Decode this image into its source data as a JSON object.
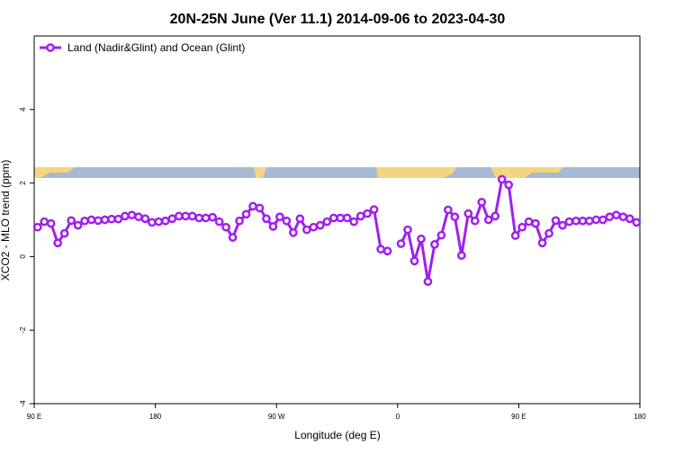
{
  "chart_data": {
    "type": "line",
    "title": "20N-25N June (Ver 11.1)   2014-09-06 to 2023-04-30",
    "x_label": "Longitude (deg E)",
    "y_label": "XCO2 - MLO trend (ppm)",
    "xlim": [
      90,
      540
    ],
    "xticks": [
      {
        "value": 90,
        "label": "90 E"
      },
      {
        "value": 180,
        "label": "180"
      },
      {
        "value": 270,
        "label": "90 W"
      },
      {
        "value": 360,
        "label": "0"
      },
      {
        "value": 450,
        "label": "90 E"
      },
      {
        "value": 540,
        "label": "180"
      }
    ],
    "ylim": [
      -4,
      6
    ],
    "yticks": [
      -4,
      -2,
      0,
      2,
      4
    ],
    "legend": "top-left",
    "x": [
      92.5,
      97.5,
      102.5,
      107.5,
      112.5,
      117.5,
      122.5,
      127.5,
      132.5,
      137.5,
      142.5,
      147.5,
      152.5,
      157.5,
      162.5,
      167.5,
      172.5,
      177.5,
      182.5,
      187.5,
      192.5,
      197.5,
      202.5,
      207.5,
      212.5,
      217.5,
      222.5,
      227.5,
      232.5,
      237.5,
      242.5,
      247.5,
      252.5,
      257.5,
      262.5,
      267.5,
      272.5,
      277.5,
      282.5,
      287.5,
      292.5,
      297.5,
      302.5,
      307.5,
      312.5,
      317.5,
      322.5,
      327.5,
      332.5,
      337.5,
      342.5,
      347.5,
      352.5,
      357.5,
      362.5,
      367.5,
      372.5,
      377.5,
      382.5,
      387.5,
      392.5,
      397.5,
      402.5,
      407.5,
      412.5,
      417.5,
      422.5,
      427.5,
      432.5,
      437.5,
      442.5,
      447.5,
      452.5,
      457.5,
      462.5,
      467.5,
      472.5,
      477.5,
      482.5,
      487.5,
      492.5,
      497.5,
      502.5,
      507.5,
      512.5,
      517.5,
      522.5,
      527.5,
      532.5,
      537.5
    ],
    "series": [
      {
        "name": "Land (Nadir&Glint) and Ocean (Glint)",
        "color": "#a020f0",
        "values": [
          0.8,
          0.95,
          0.9,
          0.37,
          0.63,
          0.98,
          0.85,
          0.97,
          1.0,
          0.98,
          1.0,
          1.02,
          1.02,
          1.1,
          1.13,
          1.08,
          1.03,
          0.93,
          0.95,
          0.97,
          1.03,
          1.1,
          1.1,
          1.1,
          1.05,
          1.05,
          1.07,
          0.95,
          0.8,
          0.52,
          0.97,
          1.15,
          1.37,
          1.32,
          1.03,
          0.82,
          1.08,
          0.97,
          0.65,
          1.03,
          0.73,
          0.8,
          0.85,
          0.95,
          1.05,
          1.05,
          1.05,
          0.95,
          1.1,
          1.17,
          1.28,
          0.2,
          0.15,
          null,
          0.35,
          0.73,
          -0.12,
          0.48,
          -0.68,
          0.33,
          0.58,
          1.27,
          1.08,
          0.03,
          1.17,
          0.97,
          1.48,
          1.0,
          1.1,
          2.1,
          1.95,
          0.57,
          0.8,
          0.95,
          0.9,
          0.37,
          0.63,
          0.98,
          0.85,
          0.95,
          0.97,
          0.97,
          0.97,
          1.0,
          1.0,
          1.08,
          1.13,
          1.08,
          1.03,
          0.93
        ]
      }
    ]
  }
}
